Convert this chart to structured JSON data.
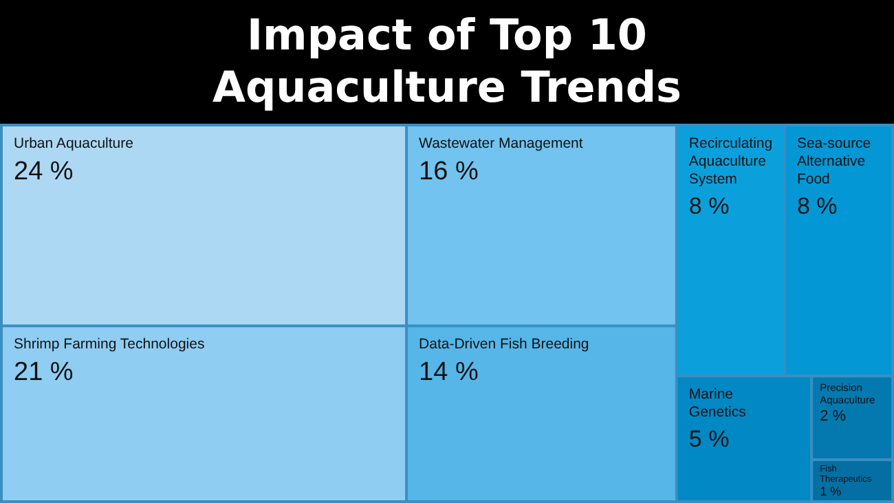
{
  "chart_data": {
    "type": "other",
    "title": "Impact of Top 10 Aquaculture Trends",
    "categories": [
      "Urban Aquaculture",
      "Shrimp Farming Technologies",
      "Wastewater Management",
      "Data-Driven Fish Breeding",
      "Recirculating Aquaculture System",
      "Sea-source Alternative Food",
      "Marine Genetics",
      "Precision Aquaculture",
      "Fish Therapeutics"
    ],
    "values": [
      24,
      21,
      16,
      14,
      8,
      8,
      5,
      2,
      1
    ],
    "value_labels": [
      "24 %",
      "21 %",
      "16 %",
      "14 %",
      "8 %",
      "8 %",
      "5 %",
      "2 %",
      "1 %"
    ],
    "colors": [
      "#acd8f4",
      "#8fcdf2",
      "#72c3ef",
      "#57b6e8",
      "#0ba0dc",
      "#0497d6",
      "#0288c4",
      "#0479b0",
      "#046fa3"
    ]
  }
}
